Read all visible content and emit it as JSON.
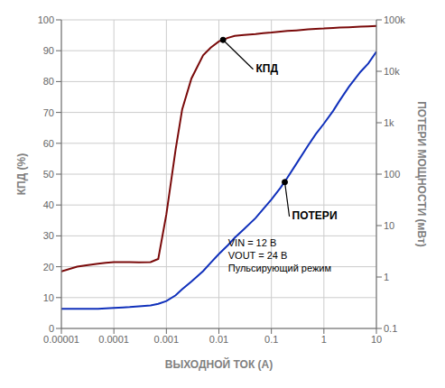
{
  "chart_data": {
    "type": "line",
    "x_label": "ВЫХОДНОЙ ТОК (А)",
    "y_label": "КПД (%)",
    "y2_label": "ПОТЕРИ МОЩНОСТИ (мВт)",
    "log": [
      "x",
      "y2"
    ],
    "grid": true,
    "xlim": [
      1e-05,
      10
    ],
    "xticks": [
      1e-05,
      0.0001,
      0.001,
      0.01,
      0.1,
      1,
      10
    ],
    "ylim": [
      0,
      100
    ],
    "yticks": [
      0,
      10,
      20,
      30,
      40,
      50,
      60,
      70,
      80,
      90,
      100
    ],
    "y2lim": [
      0.1,
      100000
    ],
    "y2ticks": [
      0.1,
      1,
      10,
      100,
      {
        "value": 1000,
        "label": "1k"
      },
      {
        "value": 10000,
        "label": "10k"
      },
      {
        "value": 100000,
        "label": "100k"
      }
    ],
    "x": [
      1e-05,
      2e-05,
      3e-05,
      5e-05,
      7e-05,
      0.0001,
      0.00015,
      0.0002,
      0.0003,
      0.0005,
      0.0007,
      0.001,
      0.0015,
      0.002,
      0.003,
      0.005,
      0.007,
      0.01,
      0.015,
      0.02,
      0.03,
      0.05,
      0.07,
      0.1,
      0.15,
      0.2,
      0.3,
      0.5,
      0.7,
      1.0,
      1.5,
      2.0,
      3.0,
      5.0,
      7.0,
      10.0
    ],
    "series": [
      {
        "color": "#7a0a0a",
        "axis": "y",
        "values": [
          18.5,
          20.0,
          20.5,
          21.0,
          21.3,
          21.5,
          21.5,
          21.5,
          21.4,
          21.5,
          22.5,
          37,
          58,
          71,
          81,
          88.5,
          91,
          93,
          94.2,
          94.8,
          95.1,
          95.4,
          95.7,
          95.9,
          96.2,
          96.4,
          96.6,
          96.9,
          97.1,
          97.2,
          97.4,
          97.5,
          97.6,
          97.8,
          97.9,
          98.0
        ]
      },
      {
        "color": "#1030bb",
        "axis": "y2",
        "values": [
          0.24,
          0.24,
          0.24,
          0.24,
          0.245,
          0.25,
          0.255,
          0.26,
          0.27,
          0.28,
          0.3,
          0.34,
          0.44,
          0.58,
          0.82,
          1.3,
          1.9,
          2.8,
          4.2,
          5.8,
          8.5,
          14,
          21,
          32,
          55,
          84,
          160,
          360,
          600,
          960,
          1700,
          2700,
          5000,
          9800,
          14200,
          24000
        ]
      }
    ],
    "annotations": [
      {
        "text": "КПД",
        "x": 0.012,
        "y": 93.5,
        "text_x": 0.045,
        "text_y": 84,
        "axis": "y"
      },
      {
        "text": "ПОТЕРИ",
        "x": 0.18,
        "y": 70,
        "text_x": 0.22,
        "text_y": 15,
        "axis": "y2"
      },
      {
        "text": [
          "VIN = 12 В",
          "VOUT = 24 В",
          "Пульсирующий режим"
        ],
        "text_x": 0.015,
        "text_y": 29,
        "axis": "y"
      }
    ]
  }
}
